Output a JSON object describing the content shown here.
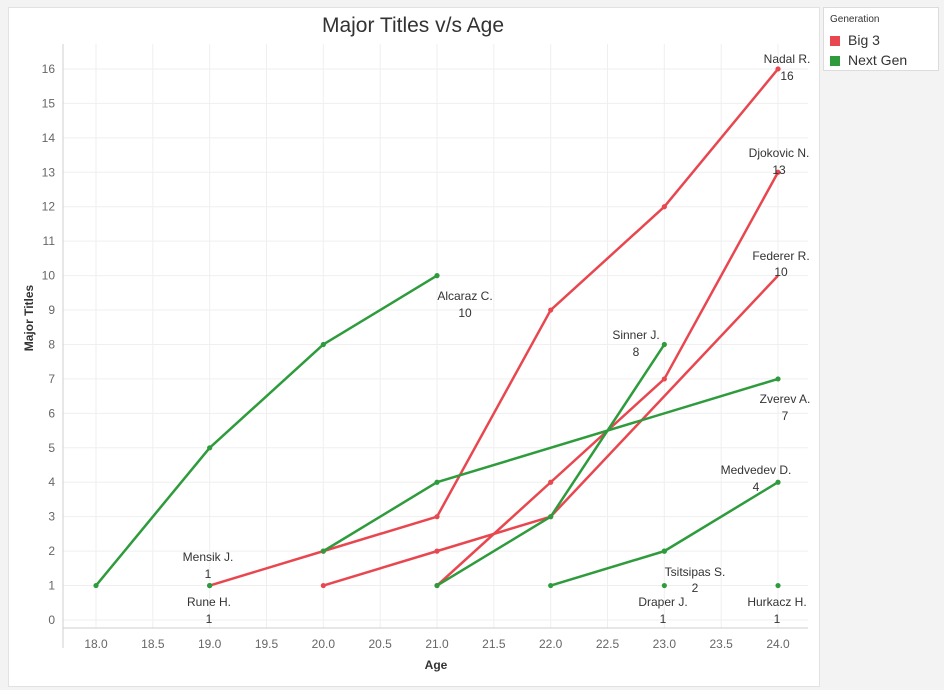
{
  "chart_data": {
    "type": "line",
    "title": "Major Titles v/s Age",
    "xlabel": "Age",
    "ylabel": "Major Titles",
    "xlim": [
      17.5,
      24.3
    ],
    "ylim": [
      -0.3,
      16.8
    ],
    "x_ticks": [
      "18.0",
      "18.5",
      "19.0",
      "19.5",
      "20.0",
      "20.5",
      "21.0",
      "21.5",
      "22.0",
      "22.5",
      "23.0",
      "23.5",
      "24.0"
    ],
    "y_ticks": [
      "0",
      "1",
      "2",
      "3",
      "4",
      "5",
      "6",
      "7",
      "8",
      "9",
      "10",
      "11",
      "12",
      "13",
      "14",
      "15",
      "16"
    ],
    "grid": true,
    "legend": {
      "title": "Generation",
      "position": "right",
      "items": [
        {
          "label": "Big 3",
          "color": "#e8474f"
        },
        {
          "label": "Next Gen",
          "color": "#2e9b3c"
        }
      ]
    },
    "series": [
      {
        "name": "Nadal R.",
        "group": "Big 3",
        "x": [
          19,
          20,
          21,
          22,
          23,
          24
        ],
        "y": [
          1,
          2,
          3,
          9,
          12,
          16
        ],
        "label": "Nadal R.",
        "value_label": "16"
      },
      {
        "name": "Djokovic N.",
        "group": "Big 3",
        "x": [
          21,
          22,
          23,
          24
        ],
        "y": [
          1,
          4,
          7,
          13
        ],
        "label": "Djokovic N.",
        "value_label": "13"
      },
      {
        "name": "Federer R.",
        "group": "Big 3",
        "x": [
          20,
          21,
          22
        ],
        "y": [
          1,
          2,
          3
        ],
        "label": "Federer R.",
        "value_label": "10",
        "end": [
          24,
          10
        ]
      },
      {
        "name": "Alcaraz C.",
        "group": "Next Gen",
        "x": [
          18,
          19,
          20,
          21
        ],
        "y": [
          1,
          5,
          8,
          10
        ],
        "label": "Alcaraz C.",
        "value_label": "10"
      },
      {
        "name": "Sinner J.",
        "group": "Next Gen",
        "x": [
          21,
          22,
          23
        ],
        "y": [
          1,
          3,
          8
        ],
        "label": "Sinner J.",
        "value_label": "8"
      },
      {
        "name": "Zverev A.",
        "group": "Next Gen",
        "x": [
          20,
          21,
          24
        ],
        "y": [
          2,
          4,
          7
        ],
        "label": "Zverev A.",
        "value_label": "7"
      },
      {
        "name": "Medvedev D.",
        "group": "Next Gen",
        "x": [
          22,
          23,
          24
        ],
        "y": [
          1,
          2,
          4
        ],
        "label": "Medvedev D.",
        "value_label": "4"
      },
      {
        "name": "Tsitsipas S.",
        "group": "Next Gen",
        "x": [
          23
        ],
        "y": [
          2
        ],
        "label": "Tsitsipas S.",
        "value_label": "2"
      },
      {
        "name": "Mensik J.",
        "group": "Next Gen",
        "x": [
          19
        ],
        "y": [
          1
        ],
        "label": "Mensik J.",
        "value_label": "1"
      },
      {
        "name": "Rune H.",
        "group": "Next Gen",
        "x": [
          19
        ],
        "y": [
          1
        ],
        "label": "Rune H.",
        "value_label": "1"
      },
      {
        "name": "Draper J.",
        "group": "Next Gen",
        "x": [
          23
        ],
        "y": [
          1
        ],
        "label": "Draper J.",
        "value_label": "1"
      },
      {
        "name": "Hurkacz H.",
        "group": "Next Gen",
        "x": [
          24
        ],
        "y": [
          1
        ],
        "label": "Hurkacz H.",
        "value_label": "1"
      }
    ]
  }
}
